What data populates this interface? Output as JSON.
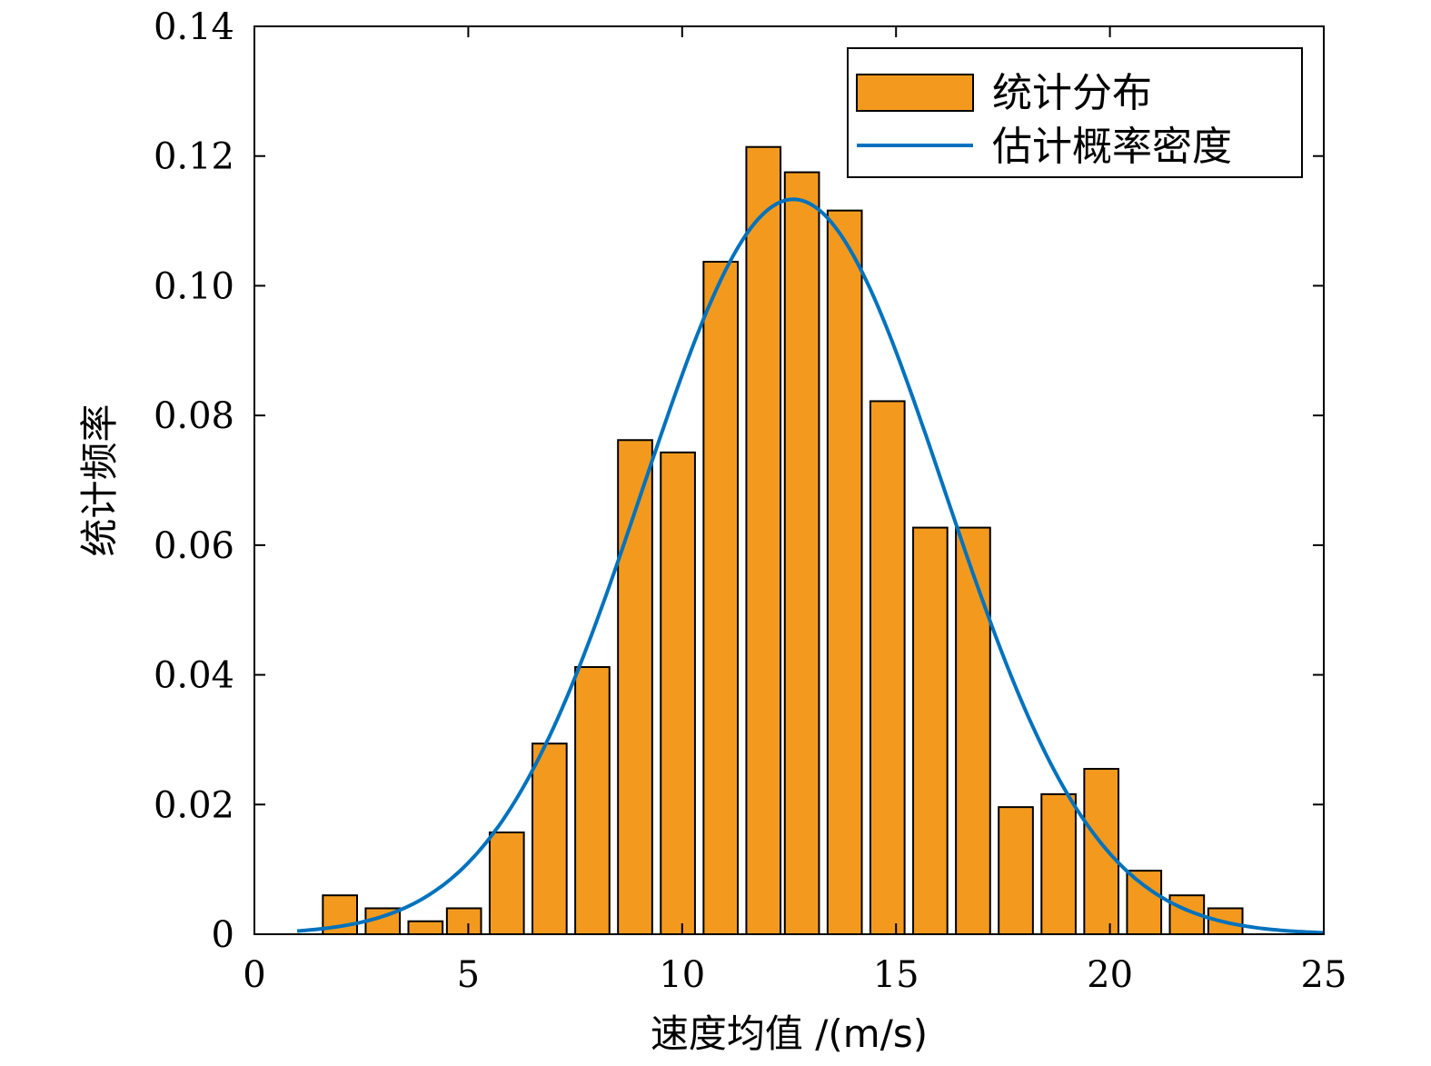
{
  "chart_data": {
    "type": "bar",
    "xlabel": "速度均值 /(m/s)",
    "ylabel": "统计频率",
    "xlim": [
      0,
      25
    ],
    "ylim": [
      0,
      0.14
    ],
    "xticks": [
      0,
      5,
      10,
      15,
      20,
      25
    ],
    "yticks": [
      0,
      0.02,
      0.04,
      0.06,
      0.08,
      0.1,
      0.12,
      0.14
    ],
    "xtick_labels": [
      "0",
      "5",
      "10",
      "15",
      "20",
      "25"
    ],
    "ytick_labels": [
      "0",
      "0.02",
      "0.04",
      "0.06",
      "0.08",
      "0.10",
      "0.12",
      "0.14"
    ],
    "grid": false,
    "legend_position": "top-right",
    "colors": {
      "bars": "#F39A1E",
      "curve": "#0072BD",
      "axis": "#000000"
    },
    "series": [
      {
        "name": "统计分布",
        "type": "bar",
        "bar_width": 0.8,
        "x": [
          2.0,
          3.0,
          4.0,
          4.9,
          5.9,
          6.9,
          7.9,
          8.9,
          9.9,
          10.9,
          11.9,
          12.8,
          13.8,
          14.8,
          15.8,
          16.8,
          17.8,
          18.8,
          19.8,
          20.8,
          21.8,
          22.7
        ],
        "values": [
          0.006,
          0.004,
          0.002,
          0.004,
          0.0157,
          0.0294,
          0.0412,
          0.0762,
          0.0743,
          0.1037,
          0.1214,
          0.1175,
          0.1116,
          0.0822,
          0.0627,
          0.0627,
          0.0196,
          0.0216,
          0.0255,
          0.0098,
          0.006,
          0.004
        ]
      },
      {
        "name": "估计概率密度",
        "type": "line",
        "distribution": "normal",
        "mean": 12.6,
        "std": 3.52,
        "x_range": [
          1.0,
          25.0
        ]
      }
    ]
  }
}
